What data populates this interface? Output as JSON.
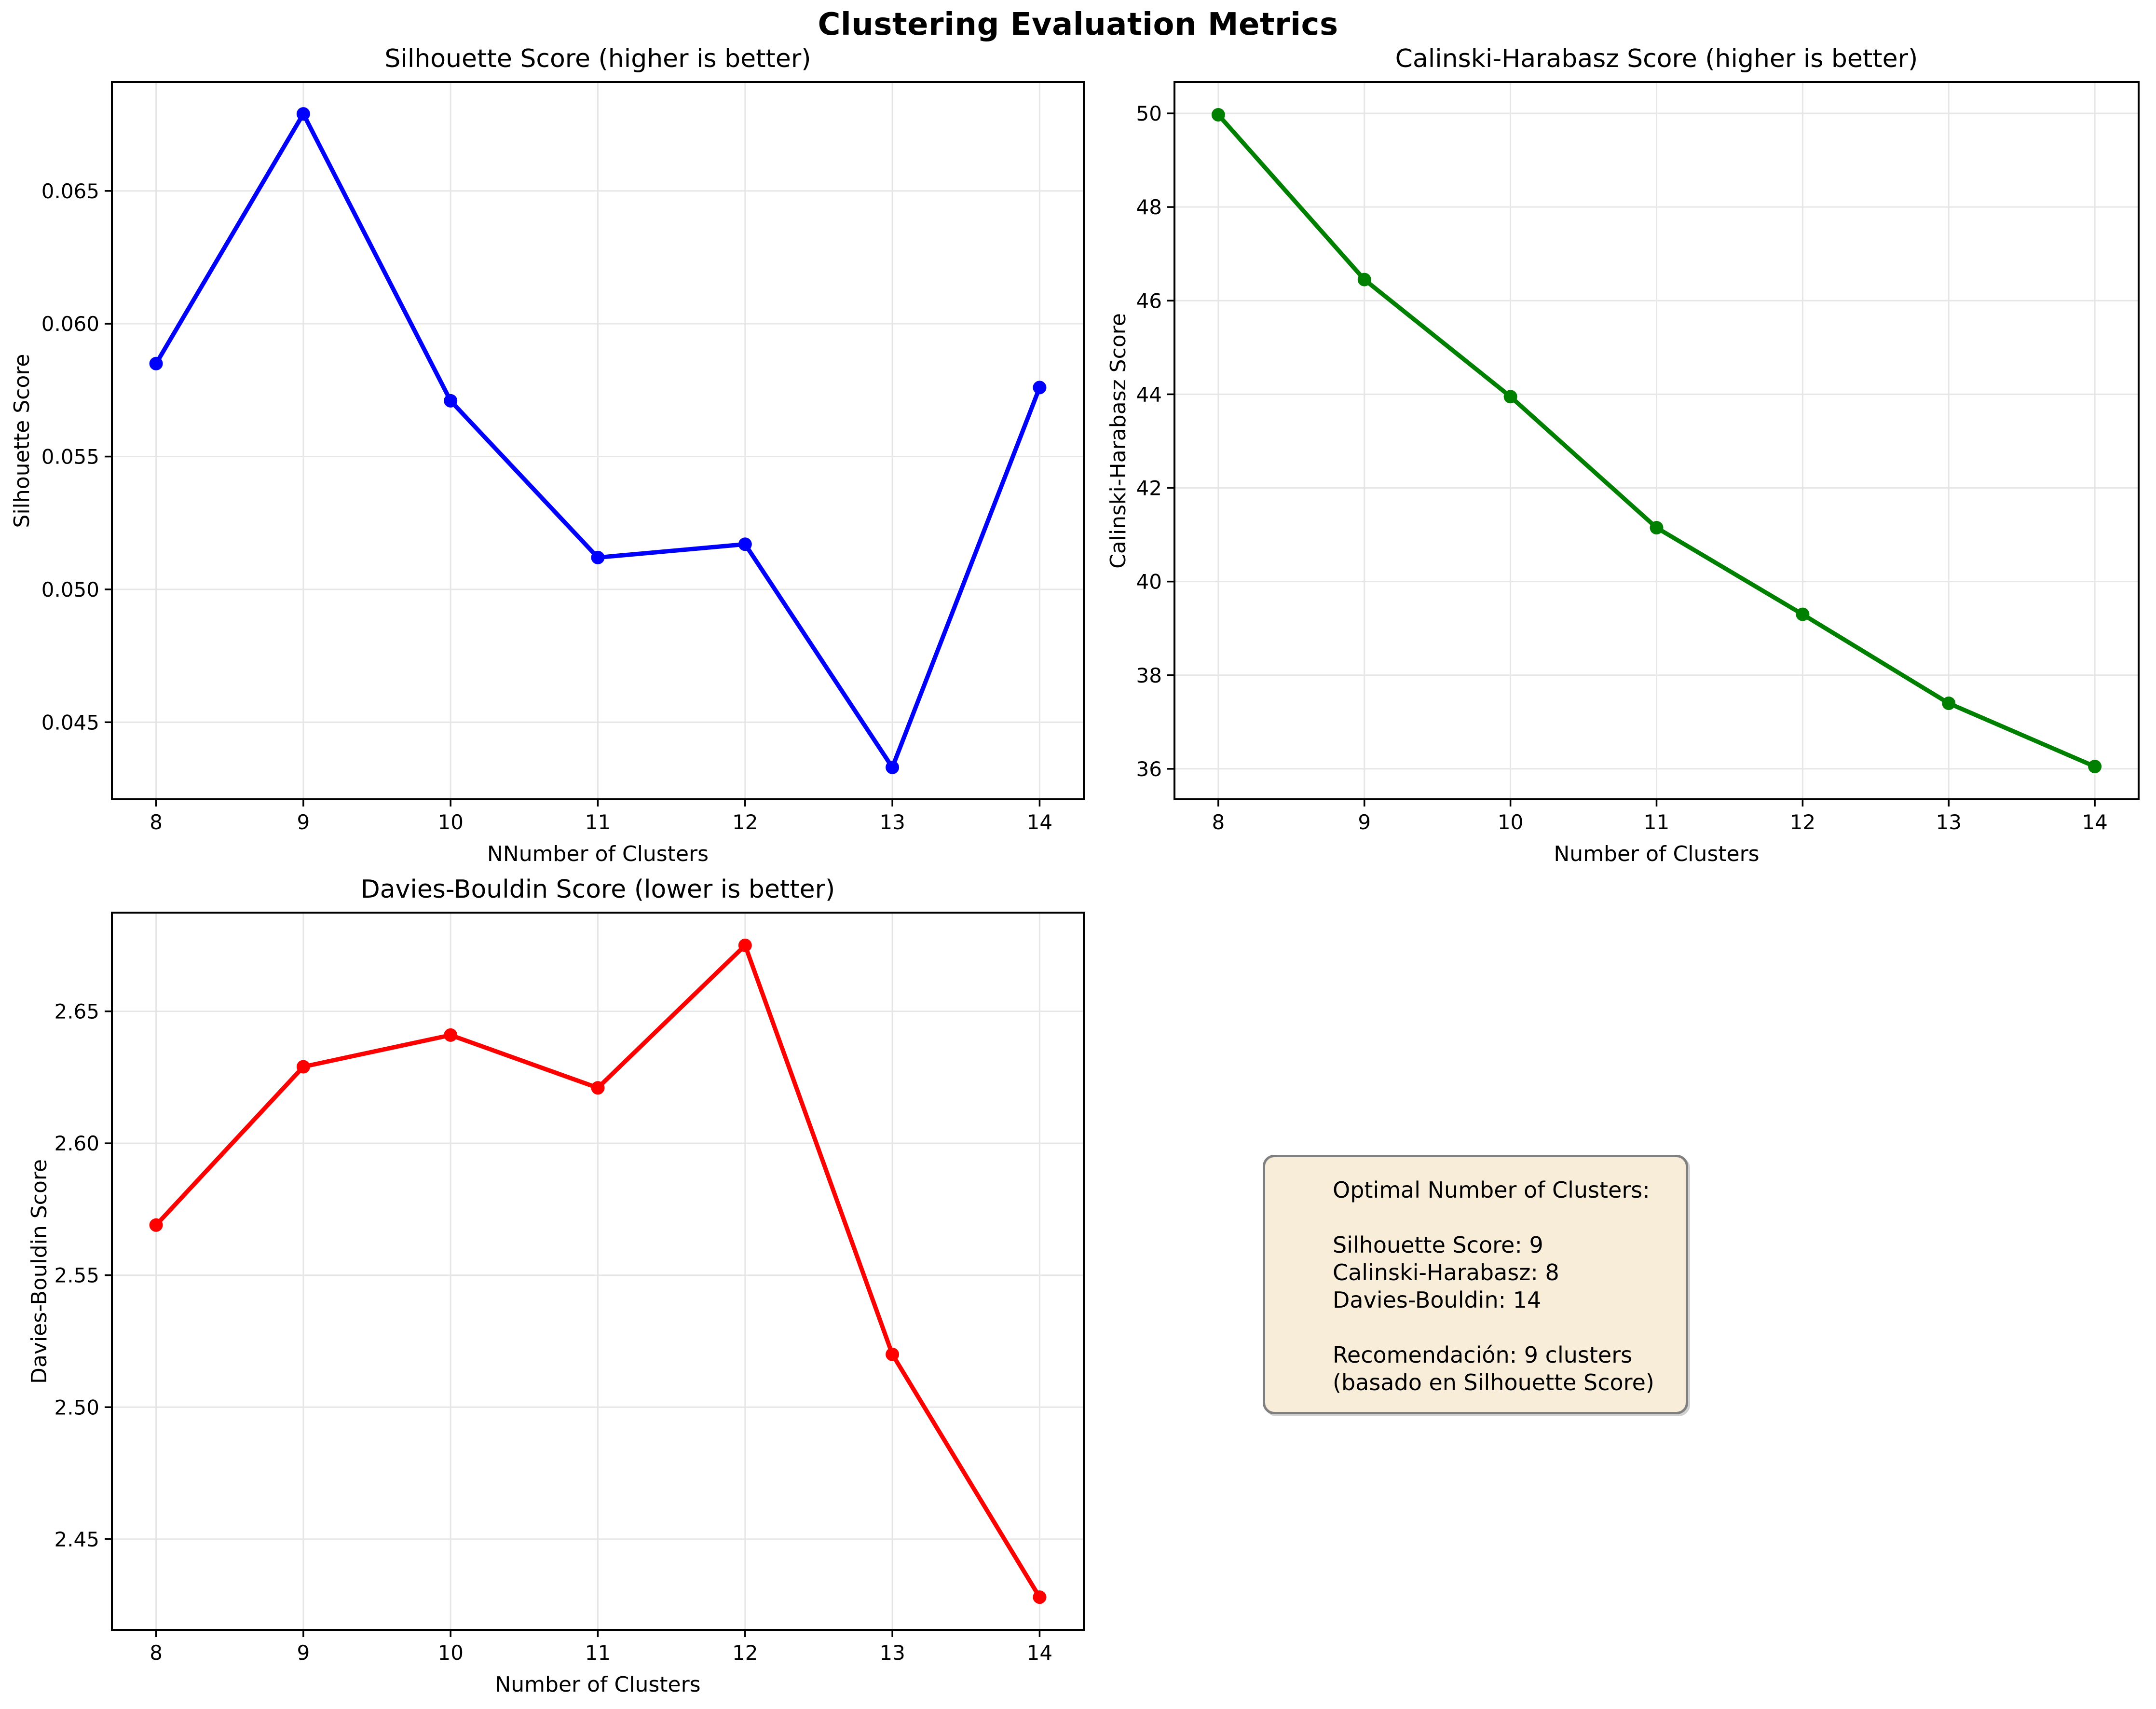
{
  "figure": {
    "title": "Clustering Evaluation Metrics",
    "background": "#ffffff",
    "grid_color": "#e6e6e6",
    "spine_color": "#000000"
  },
  "chart_data": [
    {
      "type": "line",
      "title": "Silhouette Score (higher is better)",
      "xlabel": "NNumber of Clusters",
      "ylabel": "Silhouette Score",
      "color": "#0000ff",
      "x": [
        8,
        9,
        10,
        11,
        12,
        13,
        14
      ],
      "y": [
        0.0585,
        0.0679,
        0.0571,
        0.0512,
        0.0517,
        0.0433,
        0.0576
      ],
      "xlim": [
        7.7,
        14.3
      ],
      "ylim": [
        0.0421,
        0.0691
      ],
      "xticks": [
        8,
        9,
        10,
        11,
        12,
        13,
        14
      ],
      "xtick_labels": [
        "8",
        "9",
        "10",
        "11",
        "12",
        "13",
        "14"
      ],
      "yticks": [
        0.045,
        0.05,
        0.055,
        0.06,
        0.065
      ],
      "ytick_labels": [
        "0.045",
        "0.050",
        "0.055",
        "0.060",
        "0.065"
      ],
      "grid": true,
      "legend": null,
      "marker": "circle"
    },
    {
      "type": "line",
      "title": "Calinski-Harabasz Score (higher is better)",
      "xlabel": "Number of Clusters",
      "ylabel": "Calinski-Harabasz Score",
      "color": "#008000",
      "x": [
        8,
        9,
        10,
        11,
        12,
        13,
        14
      ],
      "y": [
        49.97,
        46.45,
        43.95,
        41.15,
        39.3,
        37.4,
        36.05
      ],
      "xlim": [
        7.7,
        14.3
      ],
      "ylim": [
        35.35,
        50.67
      ],
      "xticks": [
        8,
        9,
        10,
        11,
        12,
        13,
        14
      ],
      "xtick_labels": [
        "8",
        "9",
        "10",
        "11",
        "12",
        "13",
        "14"
      ],
      "yticks": [
        36,
        38,
        40,
        42,
        44,
        46,
        48,
        50
      ],
      "ytick_labels": [
        "36",
        "38",
        "40",
        "42",
        "44",
        "46",
        "48",
        "50"
      ],
      "grid": true,
      "legend": null,
      "marker": "circle"
    },
    {
      "type": "line",
      "title": "Davies-Bouldin Score (lower is better)",
      "xlabel": "Number of Clusters",
      "ylabel": "Davies-Bouldin Score",
      "color": "#ff0000",
      "x": [
        8,
        9,
        10,
        11,
        12,
        13,
        14
      ],
      "y": [
        2.569,
        2.629,
        2.641,
        2.621,
        2.675,
        2.52,
        2.428
      ],
      "xlim": [
        7.7,
        14.3
      ],
      "ylim": [
        2.4156,
        2.6874
      ],
      "xticks": [
        8,
        9,
        10,
        11,
        12,
        13,
        14
      ],
      "xtick_labels": [
        "8",
        "9",
        "10",
        "11",
        "12",
        "13",
        "14"
      ],
      "yticks": [
        2.45,
        2.5,
        2.55,
        2.6,
        2.65
      ],
      "ytick_labels": [
        "2.45",
        "2.50",
        "2.55",
        "2.60",
        "2.65"
      ],
      "grid": true,
      "legend": null,
      "marker": "circle"
    }
  ],
  "note": {
    "bg_color": "#f8edd8",
    "border_color": "#7f7f7f",
    "lines": [
      "Optimal Number of Clusters:",
      "",
      "Silhouette Score: 9",
      "Calinski-Harabasz: 8",
      "Davies-Bouldin: 14",
      "",
      "Recomendación: 9 clusters",
      "(basado en Silhouette Score)"
    ]
  }
}
